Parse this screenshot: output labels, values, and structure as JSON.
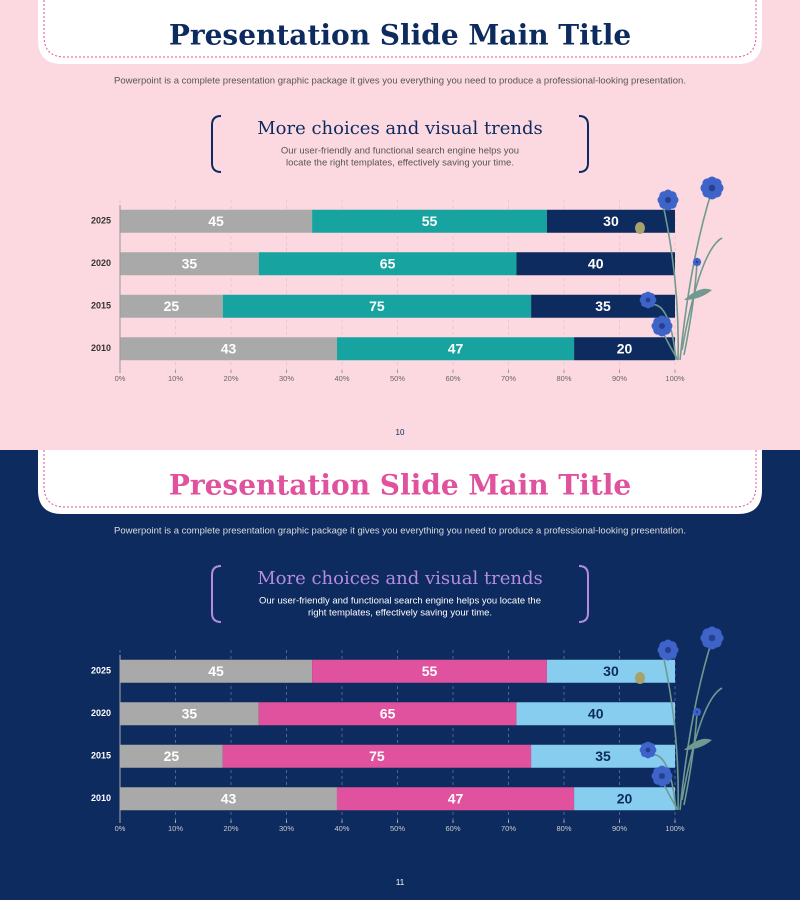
{
  "slides": [
    {
      "title": "Presentation Slide Main Title",
      "description": "Powerpoint is a complete presentation graphic package it gives you everything you need to produce a professional-looking presentation.",
      "heading": "More choices and visual trends",
      "text": [
        "Our user-friendly and functional search engine helps you",
        "locate the right templates, effectively saving your time."
      ],
      "page": "10"
    },
    {
      "title": "Presentation Slide Main Title",
      "description": "Powerpoint is a complete presentation graphic package it gives you everything you need to produce a professional-looking presentation.",
      "heading": "More choices and visual trends",
      "text": [
        "Our user-friendly and functional search engine helps you locate the",
        "right templates, effectively saving your time."
      ],
      "page": "11"
    }
  ],
  "chart_data": [
    {
      "type": "bar",
      "orientation": "horizontal",
      "stacking": "percent",
      "categories": [
        "2025",
        "2020",
        "2015",
        "2010"
      ],
      "series": [
        {
          "color": "#a9a9a9",
          "label_color": "#ffffff",
          "values": [
            45,
            35,
            25,
            43
          ]
        },
        {
          "color": "#17a3a0",
          "label_color": "#ffffff",
          "values": [
            55,
            65,
            75,
            47
          ]
        },
        {
          "color": "#0d2b5e",
          "label_color": "#ffffff",
          "values": [
            30,
            40,
            35,
            20
          ]
        }
      ],
      "xlim": [
        0,
        100
      ],
      "xticks": [
        {
          "value": 0,
          "label": "0%"
        },
        {
          "value": 10,
          "label": "10%"
        },
        {
          "value": 20,
          "label": "20%"
        },
        {
          "value": 30,
          "label": "30%"
        },
        {
          "value": 40,
          "label": "40%"
        },
        {
          "value": 50,
          "label": "50%"
        },
        {
          "value": 60,
          "label": "60%"
        },
        {
          "value": 70,
          "label": "70%"
        },
        {
          "value": 80,
          "label": "80%"
        },
        {
          "value": 90,
          "label": "90%"
        },
        {
          "value": 100,
          "label": "100%"
        }
      ],
      "grid": true
    },
    {
      "type": "bar",
      "orientation": "horizontal",
      "stacking": "percent",
      "categories": [
        "2025",
        "2020",
        "2015",
        "2010"
      ],
      "series": [
        {
          "color": "#a9a9a9",
          "label_color": "#ffffff",
          "values": [
            45,
            35,
            25,
            43
          ]
        },
        {
          "color": "#e0519e",
          "label_color": "#ffffff",
          "values": [
            55,
            65,
            75,
            47
          ]
        },
        {
          "color": "#86cdf0",
          "label_color": "#0d2b5e",
          "values": [
            30,
            40,
            35,
            20
          ]
        }
      ],
      "xlim": [
        0,
        100
      ],
      "xticks": [
        {
          "value": 0,
          "label": "0%"
        },
        {
          "value": 10,
          "label": "10%"
        },
        {
          "value": 20,
          "label": "20%"
        },
        {
          "value": 30,
          "label": "30%"
        },
        {
          "value": 40,
          "label": "40%"
        },
        {
          "value": 50,
          "label": "50%"
        },
        {
          "value": 60,
          "label": "60%"
        },
        {
          "value": 70,
          "label": "70%"
        },
        {
          "value": 80,
          "label": "80%"
        },
        {
          "value": 90,
          "label": "90%"
        },
        {
          "value": 100,
          "label": "100%"
        }
      ],
      "grid": true
    }
  ]
}
